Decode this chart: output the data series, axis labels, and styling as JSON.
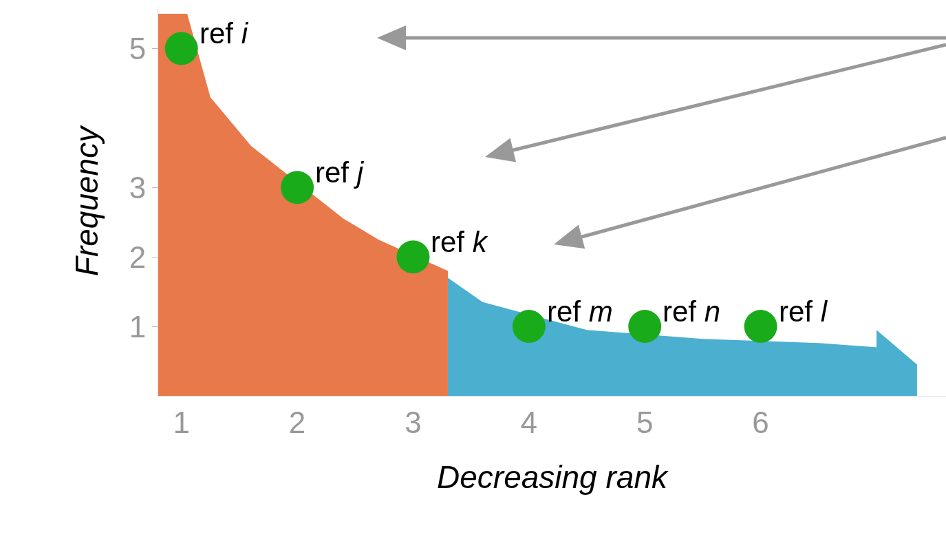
{
  "chart_data": {
    "type": "area",
    "xlabel": "Decreasing rank",
    "ylabel": "Frequency",
    "xlim": [
      0.8,
      7.6
    ],
    "ylim": [
      0,
      5.6
    ],
    "xticks": [
      1,
      2,
      3,
      4,
      5,
      6
    ],
    "yticks": [
      1,
      2,
      3,
      5
    ],
    "grid": false,
    "legend": false,
    "series": [
      {
        "color": "#e8794a",
        "x": [
          0.8,
          1.05,
          1.25,
          1.6,
          2.4,
          2.7,
          3.3
        ],
        "values": [
          5.5,
          5.5,
          4.3,
          3.6,
          2.55,
          2.25,
          1.8
        ]
      },
      {
        "color": "#4bafd0",
        "x": [
          3.3,
          3.6,
          4.5,
          5.5,
          6.5,
          7,
          7,
          7.35
        ],
        "values": [
          1.7,
          1.35,
          0.95,
          0.82,
          0.76,
          0.7,
          0.95,
          0.45
        ]
      },
      {
        "type": "scatter",
        "color": "#1aab1a",
        "marker": "circle",
        "x": [
          1,
          2,
          3,
          4,
          5,
          6
        ],
        "values": [
          5,
          3,
          2,
          1,
          1,
          1
        ]
      }
    ],
    "annotations": [
      {
        "text": "ref i",
        "x": 1,
        "y": 5
      },
      {
        "text": "ref j",
        "x": 2,
        "y": 3
      },
      {
        "text": "ref k",
        "x": 3,
        "y": 2
      },
      {
        "text": "ref m",
        "x": 4,
        "y": 1
      },
      {
        "text": "ref n",
        "x": 5,
        "y": 1
      },
      {
        "text": "ref l",
        "x": 6,
        "y": 1
      }
    ]
  }
}
